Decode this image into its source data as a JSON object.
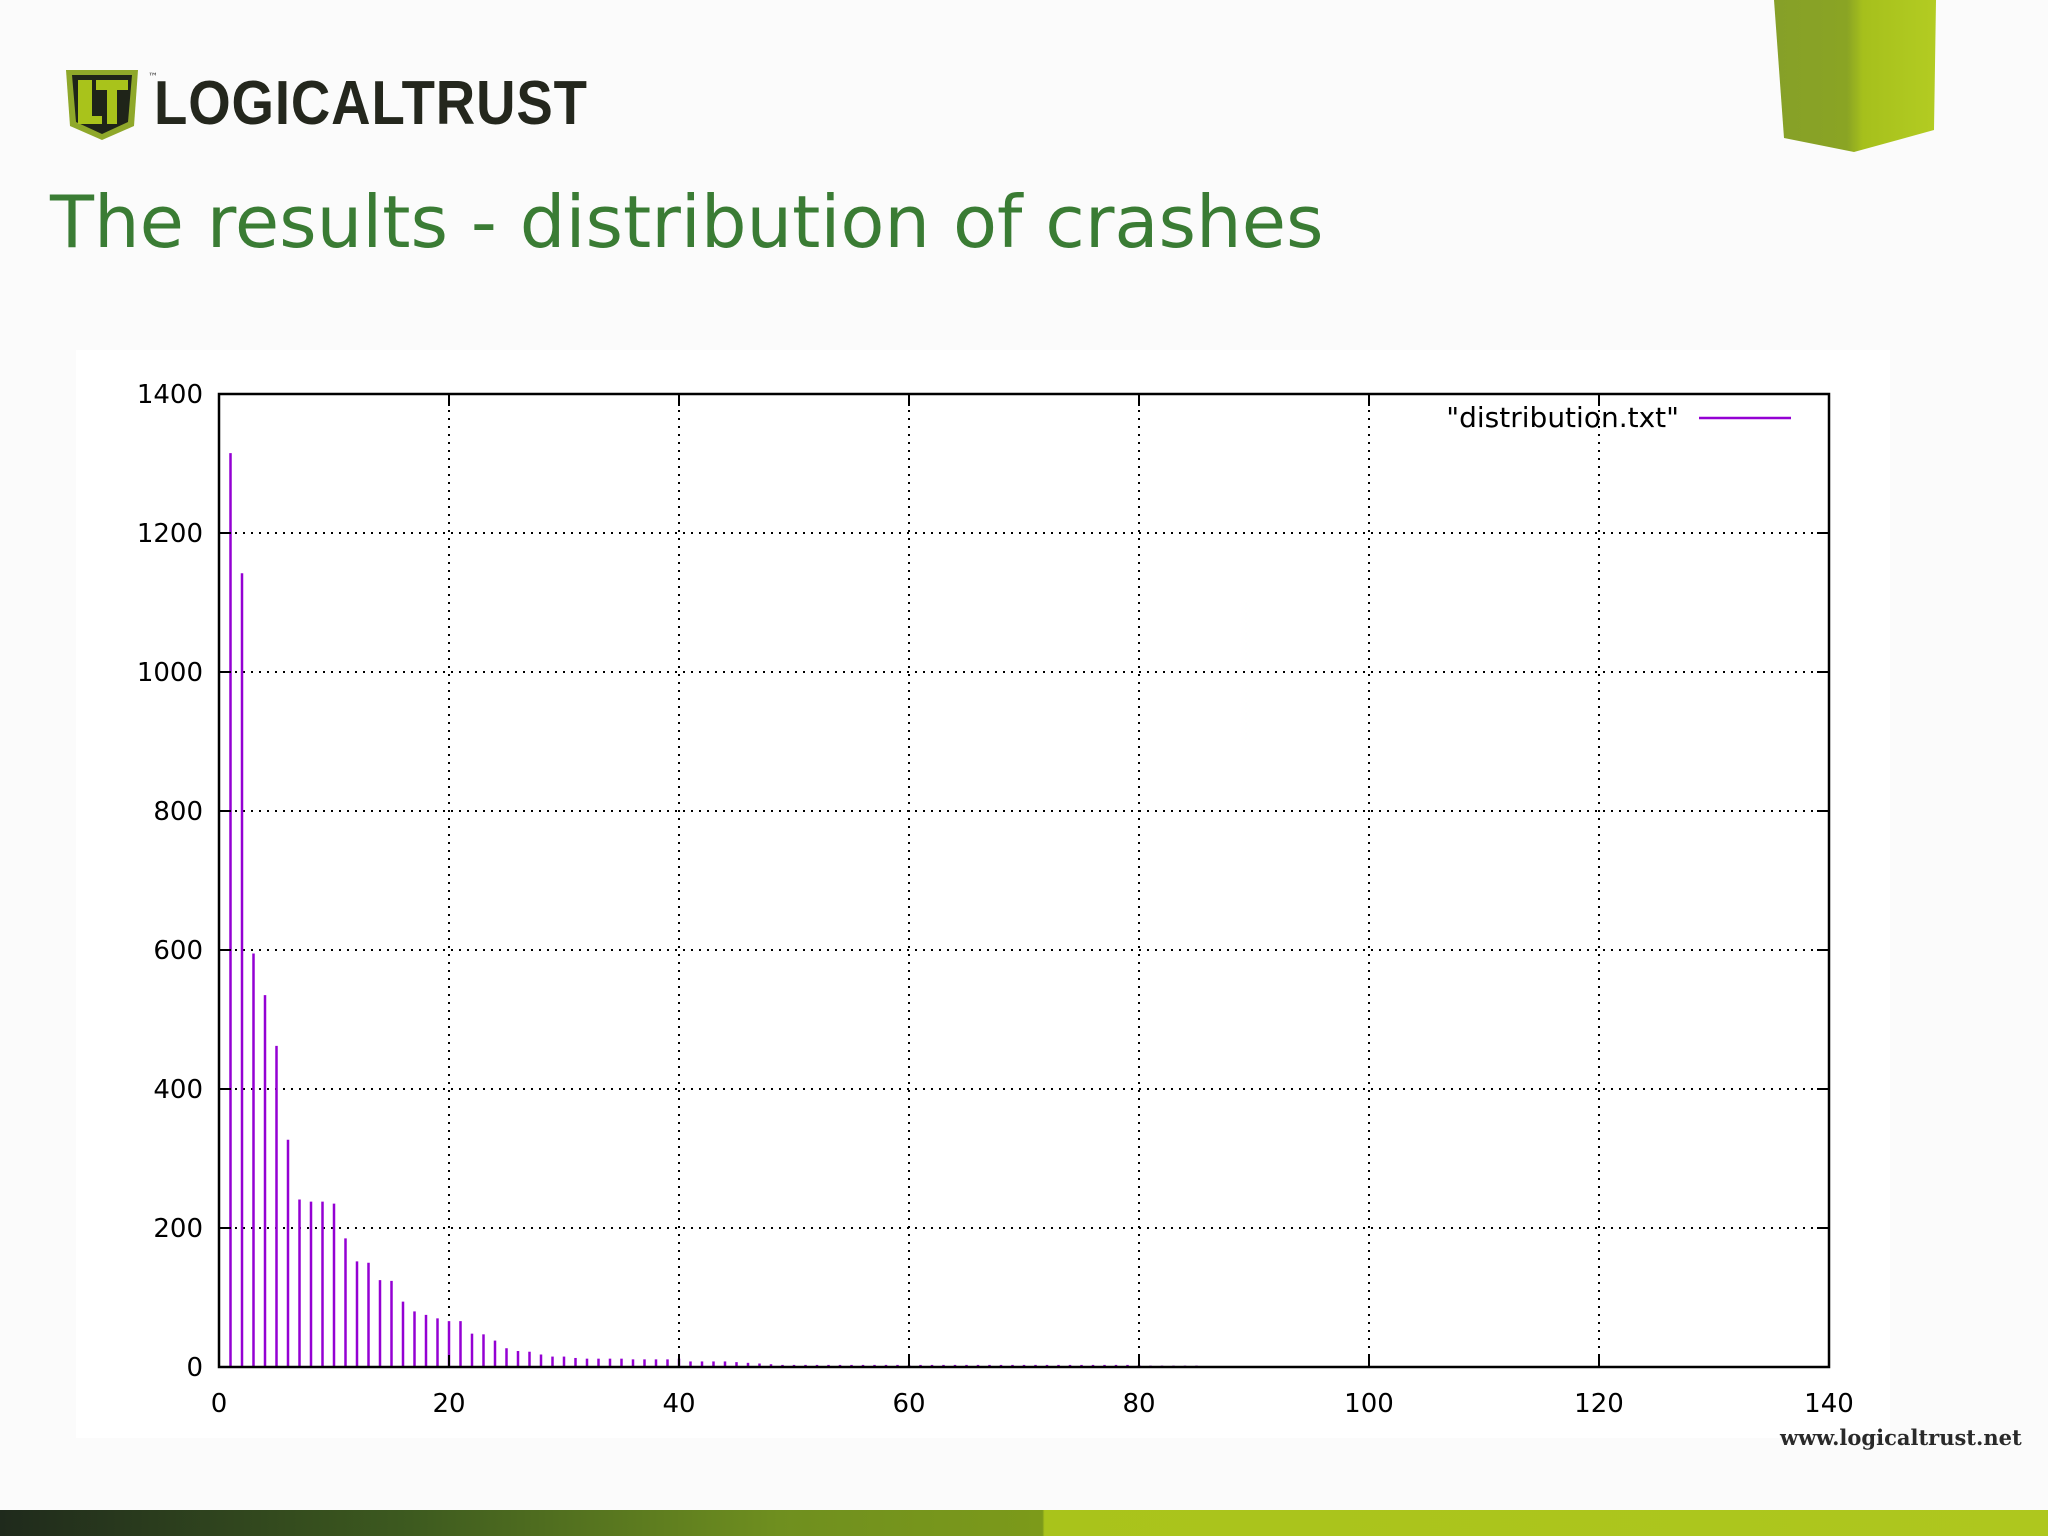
{
  "brand": {
    "name": "LOGICALTRUST",
    "logo_mark": "LT",
    "trademark": "™",
    "url": "www.logicaltrust.net",
    "accent_color": "#3a7c34",
    "lime_color": "#a9c31b"
  },
  "slide": {
    "title": "The results - distribution of crashes"
  },
  "chart_data": {
    "type": "bar",
    "style": "impulses",
    "grid": true,
    "legend_position": "top-right",
    "series": [
      {
        "name": "\"distribution.txt\"",
        "color": "#9400d3",
        "x": [
          1,
          2,
          3,
          4,
          5,
          6,
          7,
          8,
          9,
          10,
          11,
          12,
          13,
          14,
          15,
          16,
          17,
          18,
          19,
          20,
          21,
          22,
          23,
          24,
          25,
          26,
          27,
          28,
          29,
          30,
          31,
          32,
          33,
          34,
          35,
          36,
          37,
          38,
          39,
          40,
          41,
          42,
          43,
          44,
          45,
          46,
          47,
          48,
          49,
          50,
          51,
          52,
          53,
          54,
          55,
          56,
          57,
          58,
          59,
          60,
          61,
          62,
          63,
          64,
          65,
          66,
          67,
          68,
          69,
          70,
          71,
          72,
          73,
          74,
          75,
          76,
          77,
          78,
          79,
          80,
          81,
          82,
          83,
          84,
          85
        ],
        "y": [
          1315,
          1142,
          595,
          535,
          462,
          327,
          241,
          238,
          238,
          235,
          185,
          152,
          150,
          125,
          124,
          94,
          80,
          75,
          70,
          66,
          66,
          48,
          47,
          38,
          27,
          23,
          22,
          18,
          15,
          15,
          13,
          12,
          12,
          12,
          12,
          11,
          11,
          11,
          11,
          12,
          8,
          8,
          8,
          8,
          7,
          6,
          5,
          4,
          3,
          3,
          3,
          3,
          3,
          3,
          3,
          3,
          3,
          3,
          3,
          3,
          3,
          3,
          3,
          3,
          3,
          3,
          3,
          3,
          3,
          3,
          3,
          3,
          3,
          3,
          3,
          3,
          3,
          3,
          3,
          3,
          2,
          2,
          2,
          2,
          2
        ]
      }
    ],
    "xlim": [
      0,
      140
    ],
    "ylim": [
      0,
      1400
    ],
    "xticks": [
      0,
      20,
      40,
      60,
      80,
      100,
      120,
      140
    ],
    "yticks": [
      0,
      200,
      400,
      600,
      800,
      1000,
      1200,
      1400
    ]
  }
}
